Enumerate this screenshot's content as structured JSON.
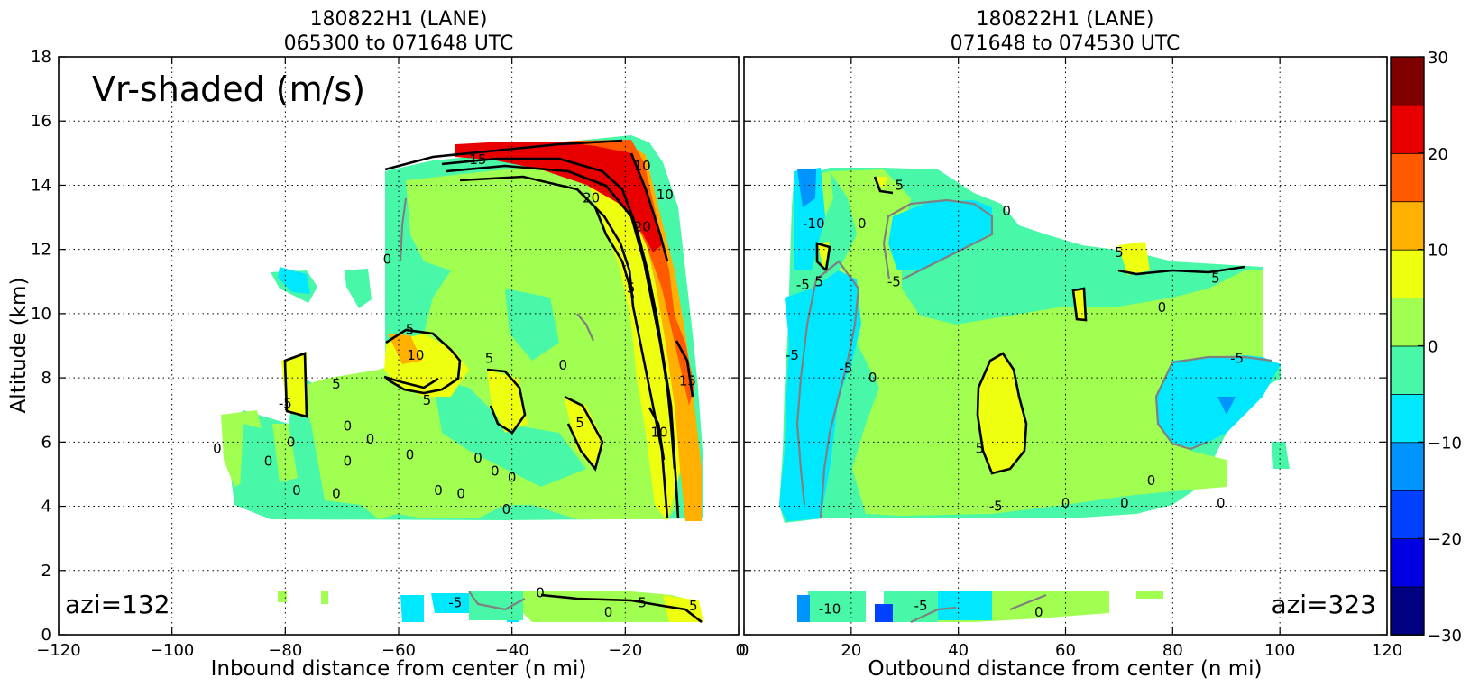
{
  "chart_data": {
    "type": "heatmap",
    "quantity_label": "Vr-shaded (m/s)",
    "grid": true,
    "panels": [
      {
        "title_line1": "180822H1 (LANE)",
        "title_line2": "065300 to 071648 UTC",
        "xlabel": "Inbound distance from center (n mi)",
        "ylabel": "Altitude (km)",
        "xlim": [
          -120,
          0
        ],
        "ylim": [
          0,
          18
        ],
        "xticks": [
          "−120",
          "−100",
          "−80",
          "−60",
          "−40",
          "−20",
          "0"
        ],
        "yticks": [
          "0",
          "2",
          "4",
          "6",
          "8",
          "10",
          "12",
          "14",
          "16",
          "18"
        ],
        "azimuth_label": "azi=132",
        "contour_labels": [
          {
            "text": "15",
            "x": -46,
            "y": 14.8
          },
          {
            "text": "20",
            "x": -26,
            "y": 13.6
          },
          {
            "text": "20",
            "x": -17,
            "y": 12.7
          },
          {
            "text": "10",
            "x": -17,
            "y": 14.6
          },
          {
            "text": "10",
            "x": -13,
            "y": 13.7
          },
          {
            "text": "5",
            "x": -19,
            "y": 10.8
          },
          {
            "text": "15",
            "x": -9,
            "y": 7.9
          },
          {
            "text": "10",
            "x": -14,
            "y": 6.3
          },
          {
            "text": "5",
            "x": -58,
            "y": 9.5
          },
          {
            "text": "10",
            "x": -57,
            "y": 8.7
          },
          {
            "text": "5",
            "x": -44,
            "y": 8.6
          },
          {
            "text": "5",
            "x": -55,
            "y": 7.3
          },
          {
            "text": "5",
            "x": -28,
            "y": 6.6
          },
          {
            "text": "0",
            "x": -62,
            "y": 11.7
          },
          {
            "text": "0",
            "x": -31,
            "y": 8.4
          },
          {
            "text": "5",
            "x": -71,
            "y": 7.8
          },
          {
            "text": "-5",
            "x": -80,
            "y": 7.2
          },
          {
            "text": "0",
            "x": -79,
            "y": 6.0
          },
          {
            "text": "0",
            "x": -92,
            "y": 5.8
          },
          {
            "text": "0",
            "x": -83,
            "y": 5.4
          },
          {
            "text": "0",
            "x": -69,
            "y": 6.5
          },
          {
            "text": "0",
            "x": -65,
            "y": 6.1
          },
          {
            "text": "0",
            "x": -69,
            "y": 5.4
          },
          {
            "text": "0",
            "x": -58,
            "y": 5.6
          },
          {
            "text": "0",
            "x": -46,
            "y": 5.5
          },
          {
            "text": "0",
            "x": -43,
            "y": 5.1
          },
          {
            "text": "0",
            "x": -40,
            "y": 4.9
          },
          {
            "text": "0",
            "x": -78,
            "y": 4.5
          },
          {
            "text": "0",
            "x": -71,
            "y": 4.4
          },
          {
            "text": "0",
            "x": -53,
            "y": 4.5
          },
          {
            "text": "0",
            "x": -49,
            "y": 4.4
          },
          {
            "text": "0",
            "x": -41,
            "y": 3.9
          },
          {
            "text": "-5",
            "x": -50,
            "y": 1.0
          },
          {
            "text": "0",
            "x": -35,
            "y": 1.3
          },
          {
            "text": "5",
            "x": -17,
            "y": 1.0
          },
          {
            "text": "5",
            "x": -8,
            "y": 0.9
          },
          {
            "text": "0",
            "x": -23,
            "y": 0.7
          }
        ]
      },
      {
        "title_line1": "180822H1 (LANE)",
        "title_line2": "071648 to 074530 UTC",
        "xlabel": "Outbound distance from center (n mi)",
        "xlim": [
          0,
          120
        ],
        "ylim": [
          0,
          18
        ],
        "xticks": [
          "0",
          "20",
          "40",
          "60",
          "80",
          "100",
          "120"
        ],
        "azimuth_label": "azi=323",
        "contour_labels": [
          {
            "text": "-10",
            "x": 13,
            "y": 12.8
          },
          {
            "text": "0",
            "x": 22,
            "y": 12.8
          },
          {
            "text": "5",
            "x": 29,
            "y": 14.0
          },
          {
            "text": "0",
            "x": 49,
            "y": 13.2
          },
          {
            "text": "-5",
            "x": 11,
            "y": 10.9
          },
          {
            "text": "5",
            "x": 14,
            "y": 11.0
          },
          {
            "text": "-5",
            "x": 28,
            "y": 11.0
          },
          {
            "text": "5",
            "x": 70,
            "y": 11.9
          },
          {
            "text": "5",
            "x": 88,
            "y": 11.1
          },
          {
            "text": "0",
            "x": 78,
            "y": 10.2
          },
          {
            "text": "-5",
            "x": 9,
            "y": 8.7
          },
          {
            "text": "-5",
            "x": 19,
            "y": 8.3
          },
          {
            "text": "0",
            "x": 24,
            "y": 8.0
          },
          {
            "text": "-5",
            "x": 92,
            "y": 8.6
          },
          {
            "text": "5",
            "x": 44,
            "y": 5.8
          },
          {
            "text": "0",
            "x": 76,
            "y": 4.8
          },
          {
            "text": "0",
            "x": 60,
            "y": 4.1
          },
          {
            "text": "0",
            "x": 71,
            "y": 4.1
          },
          {
            "text": "0",
            "x": 89,
            "y": 4.1
          },
          {
            "text": "-5",
            "x": 47,
            "y": 4.0
          },
          {
            "text": "-10",
            "x": 16,
            "y": 0.8
          },
          {
            "text": "-5",
            "x": 33,
            "y": 0.9
          },
          {
            "text": "0",
            "x": 55,
            "y": 0.7
          }
        ]
      }
    ],
    "colorbar": {
      "ticks": [
        "30",
        "20",
        "10",
        "0",
        "−10",
        "−20",
        "−30"
      ],
      "range": [
        -30,
        30
      ],
      "levels": [
        -30,
        -25,
        -20,
        -15,
        -10,
        -5,
        0,
        5,
        10,
        15,
        20,
        25,
        30
      ],
      "colors": [
        "#000080",
        "#0000e0",
        "#0040ff",
        "#0094ff",
        "#00e8ff",
        "#48f8a8",
        "#a0ff50",
        "#eeff10",
        "#ffb000",
        "#ff5a00",
        "#e80000",
        "#800000"
      ]
    }
  }
}
